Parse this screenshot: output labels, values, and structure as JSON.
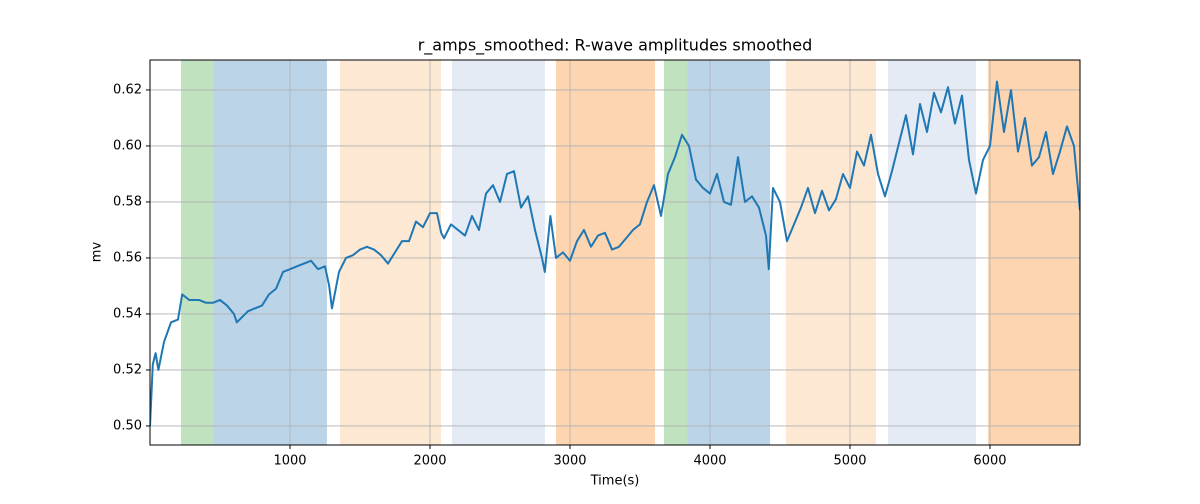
{
  "chart_data": {
    "type": "line",
    "title": "r_amps_smoothed: R-wave amplitudes smoothed",
    "xlabel": "Time(s)",
    "ylabel": "mv",
    "color": "#1f77b4",
    "grid": true,
    "xlim": [
      0,
      6643
    ],
    "ylim": [
      0.4932,
      0.6307
    ],
    "xticks": [
      1000,
      2000,
      3000,
      4000,
      5000,
      6000
    ],
    "yticks": [
      {
        "value": 0.5,
        "label": "0.50"
      },
      0.52,
      0.54,
      0.56,
      0.58,
      {
        "value": 0.6,
        "label": "0.60"
      },
      0.62
    ],
    "spans": [
      {
        "start": 221,
        "end": 457,
        "color": "#c0e2bf"
      },
      {
        "start": 457,
        "end": 1264,
        "color": "#bbd4e8"
      },
      {
        "start": 1357,
        "end": 2079,
        "color": "#fde8d4"
      },
      {
        "start": 2157,
        "end": 2821,
        "color": "#e4ebf5"
      },
      {
        "start": 2900,
        "end": 3607,
        "color": "#fdd5b0"
      },
      {
        "start": 3671,
        "end": 3836,
        "color": "#c0e2bf"
      },
      {
        "start": 3836,
        "end": 4429,
        "color": "#bbd4e8"
      },
      {
        "start": 4543,
        "end": 5186,
        "color": "#fde8d4"
      },
      {
        "start": 5271,
        "end": 5900,
        "color": "#e4ebf5"
      },
      {
        "start": 5986,
        "end": 6643,
        "color": "#fdd5b0"
      }
    ],
    "x": [
      0,
      20,
      40,
      60,
      100,
      150,
      200,
      230,
      280,
      350,
      400,
      450,
      500,
      550,
      600,
      620,
      700,
      800,
      850,
      900,
      950,
      1000,
      1050,
      1100,
      1150,
      1200,
      1250,
      1280,
      1300,
      1350,
      1400,
      1450,
      1500,
      1550,
      1600,
      1650,
      1700,
      1750,
      1800,
      1850,
      1900,
      1950,
      2000,
      2050,
      2080,
      2100,
      2150,
      2200,
      2250,
      2300,
      2350,
      2400,
      2450,
      2500,
      2550,
      2600,
      2650,
      2700,
      2750,
      2800,
      2820,
      2860,
      2900,
      2950,
      3000,
      3050,
      3100,
      3150,
      3200,
      3250,
      3300,
      3350,
      3400,
      3450,
      3500,
      3550,
      3600,
      3650,
      3700,
      3750,
      3800,
      3850,
      3900,
      3950,
      4000,
      4050,
      4100,
      4150,
      4200,
      4250,
      4300,
      4350,
      4400,
      4420,
      4450,
      4500,
      4550,
      4600,
      4650,
      4700,
      4750,
      4800,
      4850,
      4900,
      4950,
      5000,
      5050,
      5100,
      5150,
      5200,
      5250,
      5300,
      5350,
      5400,
      5450,
      5500,
      5550,
      5600,
      5650,
      5700,
      5750,
      5800,
      5850,
      5900,
      5950,
      6000,
      6050,
      6100,
      6150,
      6200,
      6250,
      6300,
      6350,
      6400,
      6450,
      6500,
      6550,
      6600,
      6643
    ],
    "values": [
      0.5,
      0.522,
      0.526,
      0.52,
      0.53,
      0.537,
      0.538,
      0.547,
      0.545,
      0.545,
      0.544,
      0.544,
      0.545,
      0.543,
      0.54,
      0.537,
      0.541,
      0.543,
      0.547,
      0.549,
      0.555,
      0.556,
      0.557,
      0.558,
      0.559,
      0.556,
      0.557,
      0.55,
      0.542,
      0.555,
      0.56,
      0.561,
      0.563,
      0.564,
      0.563,
      0.561,
      0.558,
      0.562,
      0.566,
      0.566,
      0.573,
      0.571,
      0.576,
      0.576,
      0.569,
      0.567,
      0.572,
      0.57,
      0.568,
      0.575,
      0.57,
      0.583,
      0.586,
      0.58,
      0.59,
      0.591,
      0.578,
      0.582,
      0.57,
      0.56,
      0.555,
      0.575,
      0.56,
      0.562,
      0.559,
      0.566,
      0.57,
      0.564,
      0.568,
      0.569,
      0.563,
      0.564,
      0.567,
      0.57,
      0.572,
      0.58,
      0.586,
      0.575,
      0.59,
      0.596,
      0.604,
      0.6,
      0.588,
      0.585,
      0.583,
      0.59,
      0.58,
      0.579,
      0.596,
      0.58,
      0.582,
      0.578,
      0.568,
      0.556,
      0.585,
      0.58,
      0.566,
      0.572,
      0.578,
      0.585,
      0.576,
      0.584,
      0.577,
      0.581,
      0.59,
      0.585,
      0.598,
      0.593,
      0.604,
      0.59,
      0.582,
      0.591,
      0.601,
      0.611,
      0.597,
      0.615,
      0.605,
      0.619,
      0.612,
      0.621,
      0.608,
      0.618,
      0.595,
      0.583,
      0.595,
      0.6,
      0.623,
      0.605,
      0.62,
      0.598,
      0.61,
      0.593,
      0.596,
      0.605,
      0.59,
      0.598,
      0.607,
      0.6,
      0.577
    ]
  }
}
